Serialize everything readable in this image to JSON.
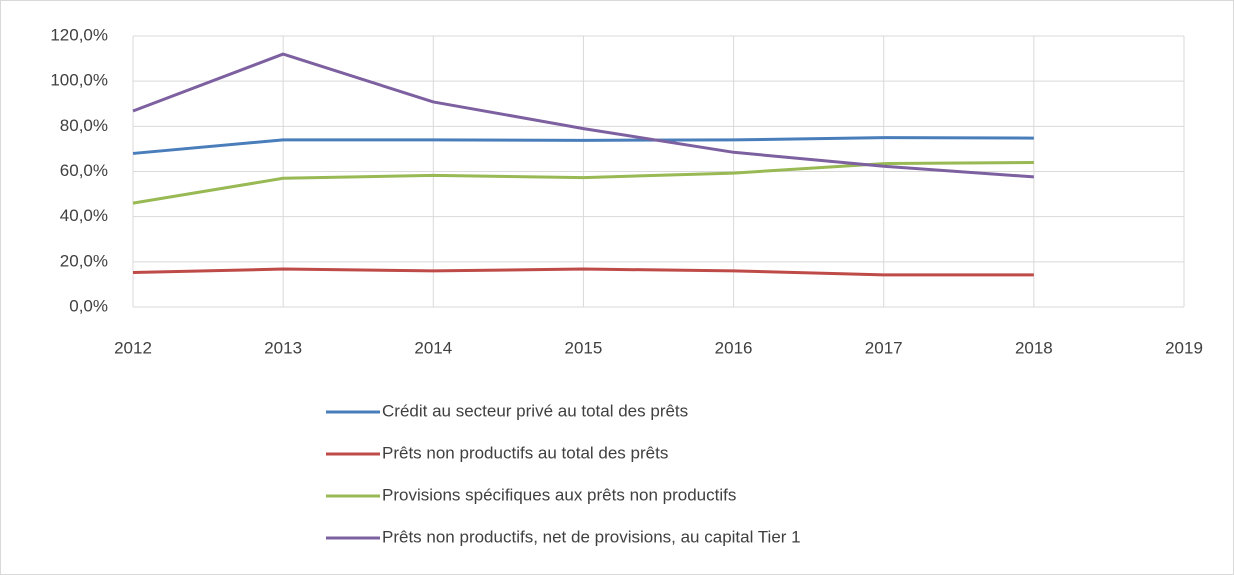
{
  "chart_data": {
    "type": "line",
    "x": [
      2012,
      2013,
      2014,
      2015,
      2016,
      2017,
      2018
    ],
    "series": [
      {
        "name": "Crédit au secteur privé au total des prêts",
        "color": "#4a7ebb",
        "values": [
          68,
          74,
          74,
          73.8,
          74,
          75,
          74.8
        ]
      },
      {
        "name": "Prêts non productifs au total des prêts",
        "color": "#be4b48",
        "values": [
          15.3,
          16.8,
          16,
          16.8,
          16,
          14.2,
          14.2
        ]
      },
      {
        "name": "Provisions spécifiques aux prêts non productifs",
        "color": "#98b954",
        "values": [
          46,
          57,
          58.3,
          57.3,
          59.3,
          63.5,
          64
        ]
      },
      {
        "name": "Prêts non productifs, net de provisions, au capital Tier 1",
        "color": "#7d60a0",
        "values": [
          86.8,
          112,
          90.8,
          79,
          68.5,
          62.3,
          57.6
        ]
      }
    ],
    "xlim": [
      2012,
      2019
    ],
    "xticks": [
      2012,
      2013,
      2014,
      2015,
      2016,
      2017,
      2018,
      2019
    ],
    "ylim": [
      0,
      120
    ],
    "yticks": [
      {
        "value": 0,
        "label": "0,0%"
      },
      {
        "value": 20,
        "label": "20,0%"
      },
      {
        "value": 40,
        "label": "40,0%"
      },
      {
        "value": 60,
        "label": "60,0%"
      },
      {
        "value": 80,
        "label": "80,0%"
      },
      {
        "value": 100,
        "label": "100,0%"
      },
      {
        "value": 120,
        "label": "120,0%"
      }
    ],
    "grid": true,
    "legend": "bottom"
  }
}
